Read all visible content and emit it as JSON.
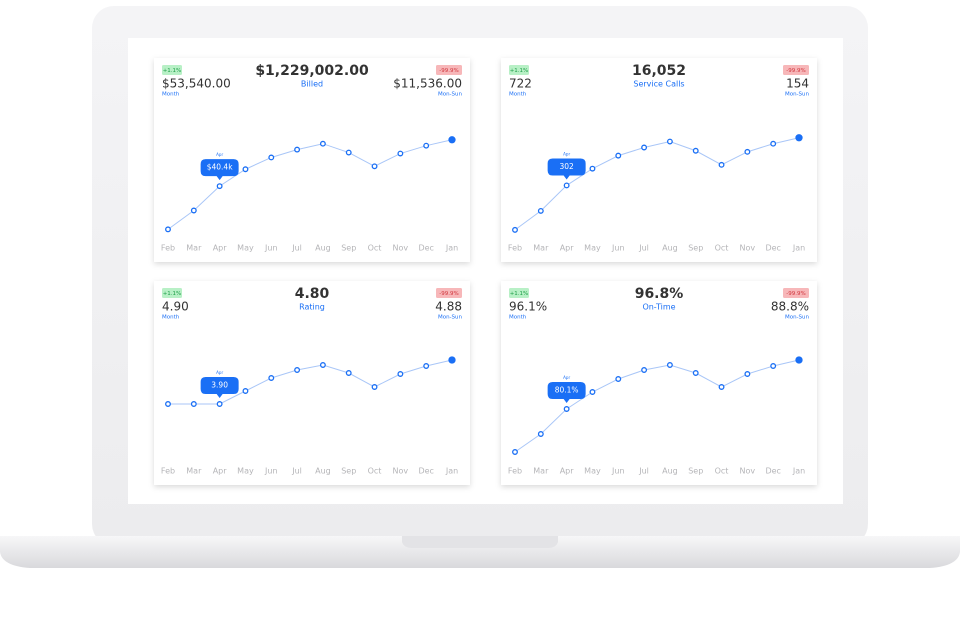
{
  "cards": [
    {
      "badge_up": "+1.1%",
      "left_value": "$53,540.00",
      "left_label": "Month",
      "headline": "$1,229,002.00",
      "headline_label": "Billed",
      "badge_down": "-99.9%",
      "right_value": "$11,536.00",
      "right_label": "Mon-Sun",
      "chart_data": {
        "type": "line",
        "categories": [
          "Feb",
          "Mar",
          "Apr",
          "May",
          "Jun",
          "Jul",
          "Aug",
          "Sep",
          "Oct",
          "Nov",
          "Dec",
          "Jan"
        ],
        "values": [
          18.4,
          28,
          40.4,
          49,
          55,
          59,
          62,
          57.5,
          50.5,
          57,
          61,
          64
        ],
        "value_labels": [
          null,
          null,
          "$40.4k",
          null,
          null,
          null,
          null,
          null,
          null,
          null,
          null,
          null
        ],
        "ylim": [
          14,
          70
        ],
        "color": "#1a6ff5"
      }
    },
    {
      "badge_up": "+1.1%",
      "left_value": "722",
      "left_label": "Month",
      "headline": "16,052",
      "headline_label": "Service Calls",
      "badge_down": "-99.9%",
      "right_value": "154",
      "right_label": "Mon-Sun",
      "chart_data": {
        "type": "line",
        "categories": [
          "Feb",
          "Mar",
          "Apr",
          "May",
          "Jun",
          "Jul",
          "Aug",
          "Sep",
          "Oct",
          "Nov",
          "Dec",
          "Jan"
        ],
        "values": [
          220,
          255,
          302,
          333,
          357,
          372,
          383,
          366,
          340,
          364,
          379,
          390
        ],
        "value_labels": [
          null,
          null,
          "302",
          null,
          null,
          null,
          null,
          null,
          null,
          null,
          null,
          null
        ],
        "ylim": [
          205,
          408
        ],
        "color": "#1a6ff5"
      }
    },
    {
      "badge_up": "+1.1%",
      "left_value": "4.90",
      "left_label": "Month",
      "headline": "4.80",
      "headline_label": "Rating",
      "badge_down": "-99.9%",
      "right_value": "4.88",
      "right_label": "Mon-Sun",
      "chart_data": {
        "type": "line",
        "categories": [
          "Feb",
          "Mar",
          "Apr",
          "May",
          "Jun",
          "Jul",
          "Aug",
          "Sep",
          "Oct",
          "Nov",
          "Dec",
          "Jan"
        ],
        "values": [
          3.9,
          3.9,
          3.9,
          4.03,
          4.16,
          4.24,
          4.29,
          4.21,
          4.07,
          4.2,
          4.28,
          4.34
        ],
        "value_labels": [
          null,
          null,
          "3.90",
          null,
          null,
          null,
          null,
          null,
          null,
          null,
          null,
          null
        ],
        "ylim": [
          3.33,
          4.43
        ],
        "color": "#1a6ff5"
      }
    },
    {
      "badge_up": "+1.1%",
      "left_value": "96.1%",
      "left_label": "Month",
      "headline": "96.8%",
      "headline_label": "On-Time",
      "badge_down": "-99.9%",
      "right_value": "88.8%",
      "right_label": "Mon-Sun",
      "chart_data": {
        "type": "line",
        "categories": [
          "Feb",
          "Mar",
          "Apr",
          "May",
          "Jun",
          "Jul",
          "Aug",
          "Sep",
          "Oct",
          "Nov",
          "Dec",
          "Jan"
        ],
        "values": [
          71.5,
          75.1,
          80.1,
          83.5,
          86.1,
          87.9,
          88.9,
          87.3,
          84.5,
          87.1,
          88.7,
          89.9
        ],
        "value_labels": [
          null,
          null,
          "80.1%",
          null,
          null,
          null,
          null,
          null,
          null,
          null,
          null,
          null
        ],
        "ylim": [
          69.7,
          91.7
        ],
        "color": "#1a6ff5"
      }
    }
  ]
}
